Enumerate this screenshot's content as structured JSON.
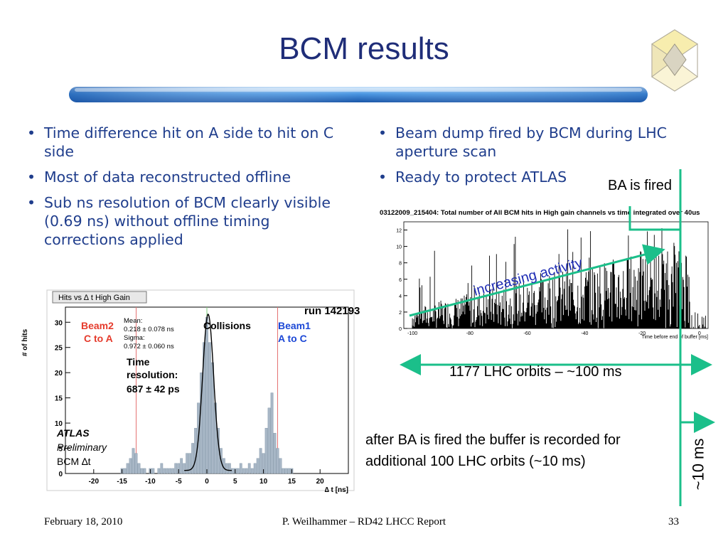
{
  "slide": {
    "title": "BCM results",
    "left_bullets": [
      "Time difference hit on A side to hit on C side",
      "Most of data reconstructed offline",
      "Sub ns resolution of BCM clearly visible (0.69 ns) without offline timing corrections applied"
    ],
    "right_bullets": [
      "Beam dump fired by BCM during LHC aperture scan",
      "Ready to protect ATLAS"
    ],
    "ba_fired": "BA is fired",
    "orbits_label": "1177 LHC orbits – ~100 ms",
    "after_note": "after BA is fired the buffer is recorded for additional 100 LHC orbits (~10 ms)",
    "ms_label": "~10 ms",
    "increasing_label": "increasing activity",
    "accent_green": "#1bbf8a"
  },
  "left_chart": {
    "panel_title": "Hits vs ∆ t High Gain",
    "run": "run 142193",
    "ylabel": "# of hits",
    "xlabel": "∆ t [ns]",
    "beam2": [
      "Beam2",
      "C to A"
    ],
    "beam1": [
      "Beam1",
      "A to C"
    ],
    "collisions": "Collisions",
    "stats": [
      "Mean:",
      "0.218 ± 0.078 ns",
      "Sigma:",
      "0.972 ± 0.060 ns"
    ],
    "time_res": [
      "Time",
      "resolution:",
      "687 ± 42 ps"
    ],
    "atlas": [
      "ATLAS",
      "Preliminary",
      "BCM ∆t"
    ],
    "xticks": [
      "-20",
      "-15",
      "-10",
      "-5",
      "0",
      "5",
      "10",
      "15",
      "20"
    ],
    "yticks": [
      "0",
      "5",
      "10",
      "15",
      "20",
      "25",
      "30"
    ]
  },
  "right_chart": {
    "title": "03122009_215404: Total number of All BCM hits in High gain channels vs time integrated over 40us",
    "xlabel": "Time before end of buffer [ms]",
    "xticks": [
      "-100",
      "-80",
      "-60",
      "-40",
      "-20",
      "0"
    ],
    "yticks": [
      "0",
      "2",
      "4",
      "6",
      "8",
      "10",
      "12"
    ]
  },
  "chart_data": [
    {
      "type": "bar",
      "title": "Hits vs ∆ t High Gain",
      "xlabel": "∆ t [ns]",
      "ylabel": "# of hits",
      "xlim": [
        -25,
        25
      ],
      "ylim": [
        0,
        33
      ],
      "x": [
        -15,
        -14.5,
        -14,
        -13.5,
        -13,
        -12.5,
        -12,
        -11.5,
        -11,
        -10.5,
        -10,
        -9.5,
        -9,
        -8.5,
        -8,
        -7.5,
        -7,
        -6.5,
        -6,
        -5.5,
        -5,
        -4.5,
        -4,
        -3.5,
        -3,
        -2.5,
        -2,
        -1.5,
        -1,
        -0.5,
        0,
        0.5,
        1,
        1.5,
        2,
        2.5,
        3,
        3.5,
        4,
        4.5,
        5,
        5.5,
        6,
        6.5,
        7,
        7.5,
        8,
        8.5,
        9,
        9.5,
        10,
        10.5,
        11,
        11.5,
        12,
        12.5,
        13,
        13.5,
        14,
        14.5,
        15,
        15.5,
        16,
        16.5,
        17
      ],
      "values": [
        1,
        1,
        2,
        3,
        5,
        4,
        2,
        1,
        1,
        0,
        1,
        1,
        0,
        1,
        2,
        1,
        1,
        1,
        1,
        2,
        2,
        3,
        2,
        4,
        4,
        6,
        9,
        14,
        20,
        26,
        31,
        26,
        22,
        14,
        9,
        5,
        3,
        2,
        2,
        1,
        1,
        1,
        2,
        1,
        1,
        2,
        1,
        2,
        3,
        5,
        4,
        9,
        13,
        16,
        8,
        5,
        3,
        1,
        1,
        1,
        1,
        0,
        0,
        0,
        0
      ]
    },
    {
      "type": "bar",
      "title": "03122009_215404: Total number of All BCM hits in High gain channels vs time integrated over 40us",
      "xlabel": "Time before end of buffer [ms]",
      "ylabel": "",
      "xlim": [
        -103,
        3
      ],
      "ylim": [
        0,
        13
      ],
      "note": "noisy histogram, activity rising from ~2 to ~13 hits before the beam abort at ~-3 ms"
    }
  ]
}
